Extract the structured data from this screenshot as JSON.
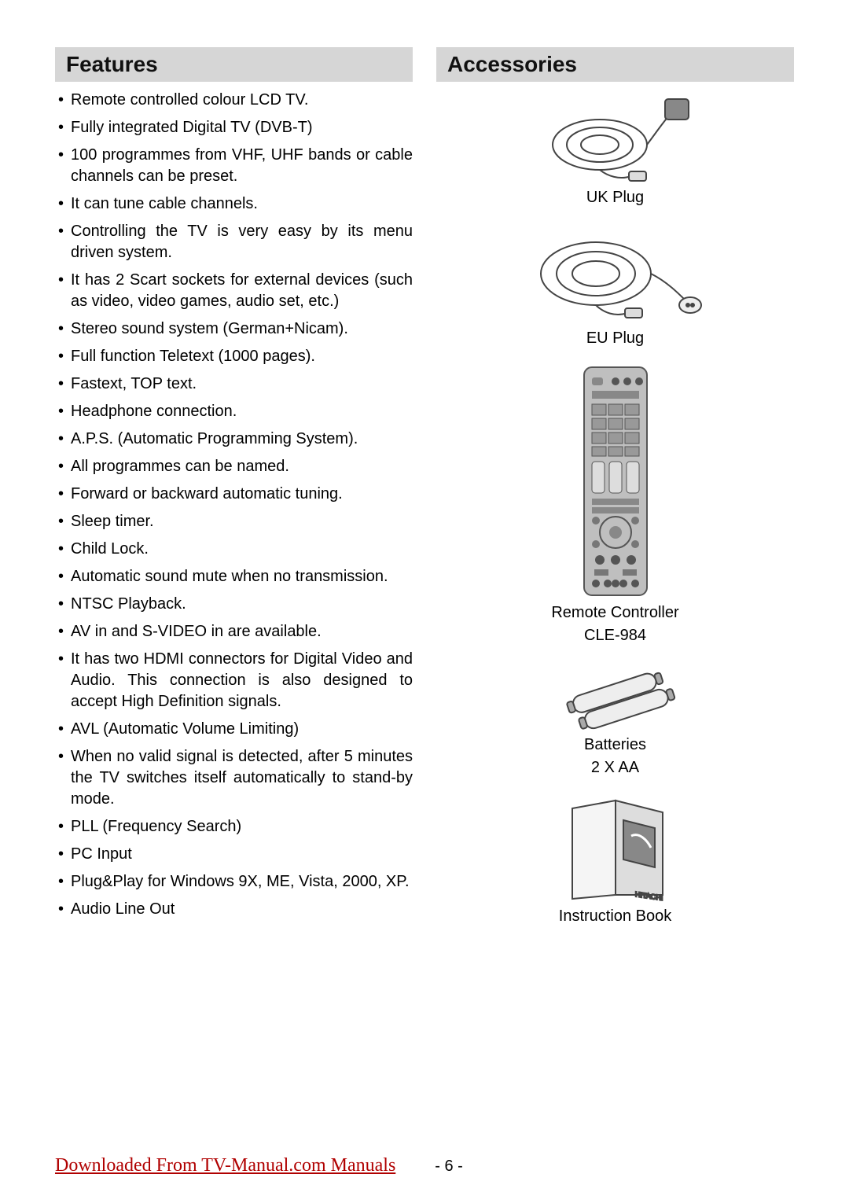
{
  "left": {
    "heading": "Features",
    "items": [
      "Remote controlled colour LCD TV.",
      "Fully integrated Digital TV (DVB-T)",
      "100 programmes from VHF, UHF bands or cable channels can be preset.",
      "It can tune cable channels.",
      "Controlling the TV is very easy by its menu driven system.",
      "It has 2 Scart sockets for external devices (such as video, video games, audio set, etc.)",
      "Stereo sound system (German+Nicam).",
      "Full function Teletext (1000 pages).",
      "Fastext, TOP text.",
      "Headphone connection.",
      "A.P.S. (Automatic Programming System).",
      "All programmes can be named.",
      "Forward or backward automatic tuning.",
      "Sleep timer.",
      "Child Lock.",
      "Automatic sound mute when no transmission.",
      "NTSC Playback.",
      "AV in and S-VIDEO in are available.",
      "It has two HDMI connectors for Digital Video and Audio. This connection is also designed to accept High Definition signals.",
      "AVL (Automatic Volume Limiting)",
      "When no valid signal is detected, after 5 minutes the TV switches itself automatically to stand-by mode.",
      "PLL (Frequency Search)",
      "PC Input",
      "Plug&Play for Windows 9X, ME, Vista, 2000, XP.",
      "Audio Line Out"
    ]
  },
  "right": {
    "heading": "Accessories",
    "items": [
      {
        "icon": "uk-plug",
        "label1": "UK Plug",
        "label2": ""
      },
      {
        "icon": "eu-plug",
        "label1": "EU Plug",
        "label2": ""
      },
      {
        "icon": "remote",
        "label1": "Remote Controller",
        "label2": "CLE-984"
      },
      {
        "icon": "batteries",
        "label1": "Batteries",
        "label2": "2 X AA"
      },
      {
        "icon": "book",
        "label1": "Instruction Book",
        "label2": ""
      }
    ]
  },
  "footer": {
    "link": "Downloaded From TV-Manual.com Manuals",
    "page": "- 6 -"
  }
}
